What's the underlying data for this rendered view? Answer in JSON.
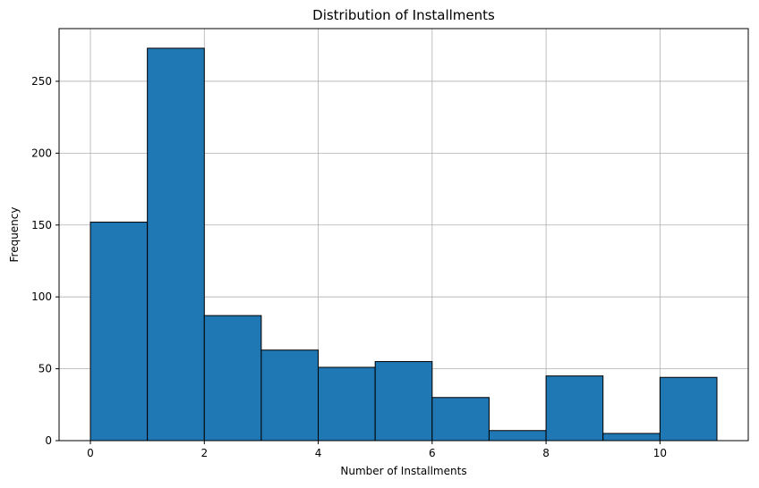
{
  "chart_data": {
    "type": "bar",
    "title": "Distribution of Installments",
    "xlabel": "Number of Installments",
    "ylabel": "Frequency",
    "bins": [
      {
        "x0": 0,
        "x1": 1,
        "value": 152
      },
      {
        "x0": 1,
        "x1": 2,
        "value": 273
      },
      {
        "x0": 2,
        "x1": 3,
        "value": 87
      },
      {
        "x0": 3,
        "x1": 4,
        "value": 63
      },
      {
        "x0": 4,
        "x1": 5,
        "value": 51
      },
      {
        "x0": 5,
        "x1": 6,
        "value": 55
      },
      {
        "x0": 6,
        "x1": 7,
        "value": 30
      },
      {
        "x0": 7,
        "x1": 8,
        "value": 7
      },
      {
        "x0": 8,
        "x1": 9,
        "value": 45
      },
      {
        "x0": 9,
        "x1": 10,
        "value": 5
      },
      {
        "x0": 10,
        "x1": 11,
        "value": 44
      }
    ],
    "xlim": [
      -0.55,
      11.55
    ],
    "ylim": [
      0,
      286.65
    ],
    "xticks": [
      0,
      2,
      4,
      6,
      8,
      10
    ],
    "xtick_labels": [
      "0",
      "2",
      "4",
      "6",
      "8",
      "10"
    ],
    "yticks": [
      0,
      50,
      100,
      150,
      200,
      250
    ],
    "ytick_labels": [
      "0",
      "50",
      "100",
      "150",
      "200",
      "250"
    ],
    "grid": true,
    "colors": {
      "bar_fill": "#1f77b4",
      "bar_edge": "#000000",
      "grid": "#b0b0b0",
      "axes": "#000000"
    }
  }
}
